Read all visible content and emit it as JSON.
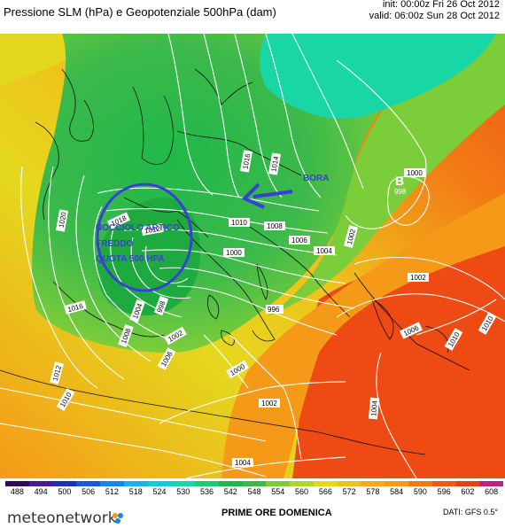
{
  "header": {
    "title": "Pressione SLM (hPa) e Geopotenziale 500hPa (dam)",
    "init": "init: 00:00z Fri 26 Oct 2012",
    "valid": "valid: 06:00z Sun 28 Oct 2012"
  },
  "map": {
    "isobars": [
      "1020",
      "1018",
      "1016",
      "1014",
      "1012",
      "1010",
      "1008",
      "1006",
      "1004",
      "1002",
      "1000",
      "998",
      "996",
      "1004",
      "1006",
      "1010",
      "1010"
    ],
    "low_label": "B",
    "low_value": "998",
    "annotation_lines": [
      "NOCCIOLO ARTICO",
      "FREDDO",
      "QUOTA 500 HPA"
    ],
    "bora_label": "BORA",
    "colors": {
      "ocean_green": "#3cb94a",
      "dark_green": "#1faa3f",
      "light_green": "#7ccd3a",
      "yellow": "#e4d81e",
      "orange": "#f59a18",
      "red": "#ee4a14",
      "cyan": "#18d6a6",
      "annotation": "#3a3fd6"
    }
  },
  "colorbar": {
    "ticks": [
      "488",
      "494",
      "500",
      "506",
      "512",
      "518",
      "524",
      "530",
      "536",
      "542",
      "548",
      "554",
      "560",
      "566",
      "572",
      "578",
      "584",
      "590",
      "596",
      "602",
      "608"
    ],
    "colors": [
      "#2e0a5c",
      "#4a1a8e",
      "#2030b6",
      "#1a56d8",
      "#1a86e4",
      "#1ab2e6",
      "#16cbd8",
      "#18d6a6",
      "#1ccc72",
      "#20b84a",
      "#3cb94a",
      "#7ccd3a",
      "#b0d42a",
      "#e4d81e",
      "#f0c01c",
      "#f5a81a",
      "#f59a18",
      "#f27a16",
      "#ee5a14",
      "#e83e12",
      "#c0207e"
    ]
  },
  "footer": {
    "logo": "meteonetwork",
    "title": "PRIME ORE DOMENICA",
    "credits": "DATI: GFS 0.5°"
  }
}
